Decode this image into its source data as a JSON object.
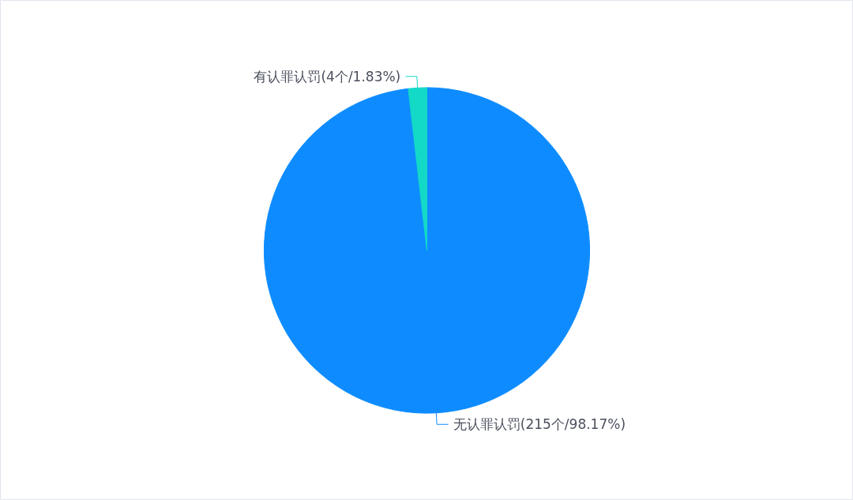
{
  "chart_data": {
    "type": "pie",
    "categories": [
      "无认罪认罚(215个/98.17%)",
      "有认罪认罚(4个/1.83%)"
    ],
    "values": [
      215,
      4
    ],
    "colors": [
      "#0e8cff",
      "#13d9c7"
    ]
  }
}
